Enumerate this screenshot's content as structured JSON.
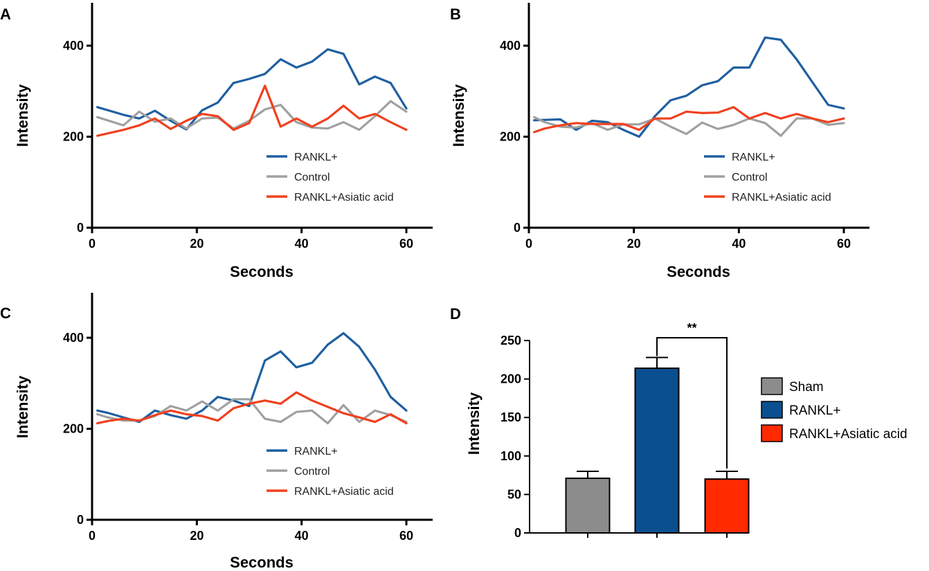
{
  "colors": {
    "rankl": "#1f5fa0",
    "control": "#a0a0a0",
    "asiatic": "#f0401e",
    "bar_sham": "#8c8c8c",
    "bar_rankl": "#0a4f8f",
    "bar_asiatic": "#ff2a00",
    "axis": "#000000"
  },
  "chart_data": [
    {
      "panel": "A",
      "type": "line",
      "xlabel": "Seconds",
      "ylabel": "Intensity",
      "xlim": [
        0,
        65
      ],
      "ylim": [
        0,
        500
      ],
      "xticks": [
        "0",
        "20",
        "40",
        "60"
      ],
      "yticks": [
        "0",
        "200",
        "400"
      ],
      "legend_position": "center-right",
      "series": [
        {
          "name": "RANKL+",
          "color_key": "rankl",
          "x": [
            1,
            6,
            9,
            12,
            15,
            18,
            21,
            24,
            27,
            30,
            33,
            36,
            39,
            42,
            45,
            48,
            51,
            54,
            57,
            60
          ],
          "y": [
            265,
            248,
            240,
            257,
            235,
            216,
            258,
            275,
            318,
            327,
            338,
            370,
            352,
            365,
            392,
            382,
            315,
            332,
            318,
            262
          ]
        },
        {
          "name": "Control",
          "color_key": "control",
          "x": [
            1,
            6,
            9,
            12,
            15,
            18,
            21,
            24,
            27,
            30,
            33,
            36,
            39,
            42,
            45,
            48,
            51,
            54,
            57,
            60
          ],
          "y": [
            243,
            225,
            255,
            233,
            240,
            218,
            240,
            242,
            218,
            235,
            260,
            270,
            232,
            220,
            218,
            232,
            215,
            245,
            278,
            255
          ]
        },
        {
          "name": "RANKL+Asiatic acid",
          "color_key": "asiatic",
          "x": [
            1,
            6,
            9,
            12,
            15,
            18,
            21,
            24,
            27,
            30,
            33,
            36,
            39,
            42,
            45,
            48,
            51,
            54,
            57,
            60
          ],
          "y": [
            202,
            215,
            225,
            240,
            217,
            235,
            250,
            245,
            215,
            230,
            312,
            222,
            240,
            222,
            240,
            268,
            240,
            250,
            232,
            215
          ]
        }
      ]
    },
    {
      "panel": "B",
      "type": "line",
      "xlabel": "Seconds",
      "ylabel": "Intensity",
      "xlim": [
        0,
        65
      ],
      "ylim": [
        0,
        500
      ],
      "xticks": [
        "0",
        "20",
        "40",
        "60"
      ],
      "yticks": [
        "0",
        "200",
        "400"
      ],
      "legend_position": "center-right",
      "series": [
        {
          "name": "RANKL+",
          "color_key": "rankl",
          "x": [
            1,
            3,
            6,
            9,
            12,
            15,
            18,
            21,
            24,
            27,
            30,
            33,
            36,
            39,
            42,
            45,
            48,
            51,
            54,
            57,
            60
          ],
          "y": [
            236,
            237,
            238,
            215,
            235,
            232,
            215,
            200,
            245,
            280,
            290,
            313,
            322,
            352,
            352,
            418,
            413,
            370,
            320,
            270,
            262
          ]
        },
        {
          "name": "Control",
          "color_key": "control",
          "x": [
            1,
            3,
            6,
            9,
            12,
            15,
            18,
            21,
            24,
            27,
            30,
            33,
            36,
            39,
            42,
            45,
            48,
            51,
            54,
            57,
            60
          ],
          "y": [
            243,
            232,
            222,
            220,
            230,
            215,
            227,
            227,
            240,
            222,
            206,
            231,
            217,
            226,
            240,
            230,
            202,
            240,
            240,
            226,
            230
          ]
        },
        {
          "name": "RANKL+Asiatic acid",
          "color_key": "asiatic",
          "x": [
            1,
            3,
            6,
            9,
            12,
            15,
            18,
            21,
            24,
            27,
            30,
            33,
            36,
            39,
            42,
            45,
            48,
            51,
            54,
            57,
            60
          ],
          "y": [
            210,
            218,
            225,
            230,
            228,
            228,
            228,
            215,
            240,
            240,
            255,
            252,
            253,
            265,
            240,
            252,
            240,
            250,
            240,
            232,
            240
          ]
        }
      ]
    },
    {
      "panel": "C",
      "type": "line",
      "xlabel": "Seconds",
      "ylabel": "Intensity",
      "xlim": [
        0,
        65
      ],
      "ylim": [
        0,
        500
      ],
      "xticks": [
        "0",
        "20",
        "40",
        "60"
      ],
      "yticks": [
        "0",
        "200",
        "400"
      ],
      "legend_position": "center-right",
      "series": [
        {
          "name": "RANKL+",
          "color_key": "rankl",
          "x": [
            1,
            3,
            6,
            9,
            12,
            15,
            18,
            21,
            24,
            27,
            30,
            33,
            36,
            39,
            42,
            45,
            48,
            51,
            54,
            57,
            60
          ],
          "y": [
            240,
            235,
            225,
            215,
            240,
            230,
            222,
            240,
            270,
            262,
            250,
            350,
            370,
            335,
            345,
            385,
            410,
            380,
            330,
            270,
            240
          ]
        },
        {
          "name": "Control",
          "color_key": "control",
          "x": [
            1,
            3,
            6,
            9,
            12,
            15,
            18,
            21,
            24,
            27,
            30,
            33,
            36,
            39,
            42,
            45,
            48,
            51,
            54,
            57,
            60
          ],
          "y": [
            232,
            225,
            218,
            218,
            228,
            250,
            240,
            260,
            240,
            265,
            265,
            222,
            215,
            237,
            240,
            212,
            252,
            215,
            240,
            230,
            215
          ]
        },
        {
          "name": "RANKL+Asiatic acid",
          "color_key": "asiatic",
          "x": [
            1,
            3,
            6,
            9,
            12,
            15,
            18,
            21,
            24,
            27,
            30,
            33,
            36,
            39,
            42,
            45,
            48,
            51,
            54,
            57,
            60
          ],
          "y": [
            212,
            217,
            222,
            218,
            230,
            240,
            232,
            228,
            218,
            245,
            255,
            262,
            255,
            280,
            262,
            248,
            234,
            225,
            215,
            232,
            212
          ]
        }
      ]
    },
    {
      "panel": "D",
      "type": "bar",
      "ylabel": "Intensity",
      "ylim": [
        0,
        250
      ],
      "yticks": [
        "0",
        "50",
        "100",
        "150",
        "200",
        "250"
      ],
      "categories": [
        "Sham",
        "RANKL+",
        "RANKL+Asiatic acid"
      ],
      "values": [
        71,
        214,
        70
      ],
      "errors": [
        9,
        14,
        10
      ],
      "color_keys": [
        "bar_sham",
        "bar_rankl",
        "bar_asiatic"
      ],
      "legend_position": "right",
      "significance": {
        "between": [
          1,
          2
        ],
        "label": "**"
      }
    }
  ]
}
